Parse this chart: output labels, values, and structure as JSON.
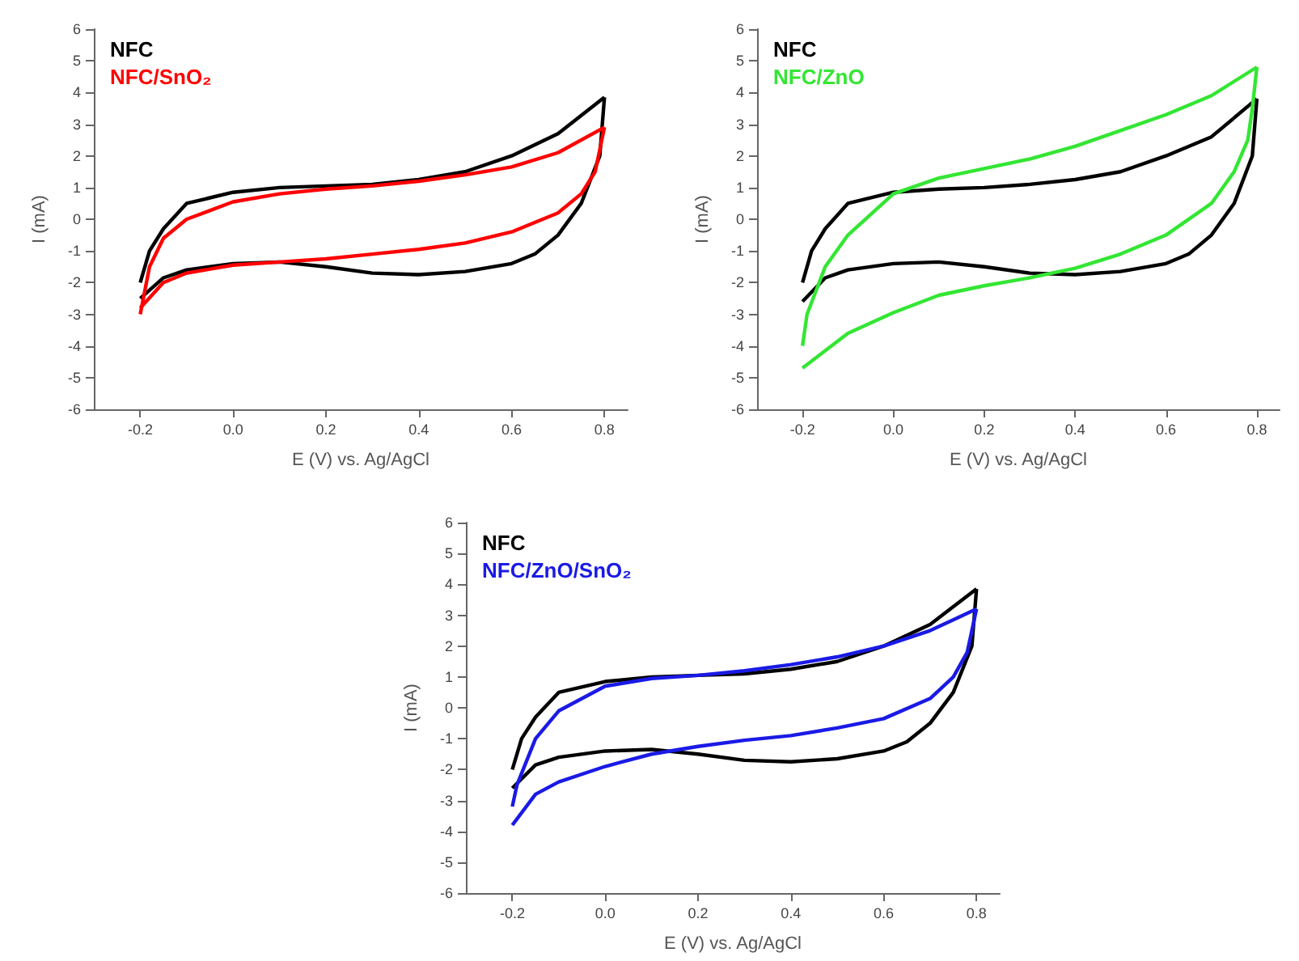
{
  "chart_data": [
    {
      "type": "line",
      "xlabel": "E (V) vs. Ag/AgCl",
      "ylabel": "I (mA)",
      "xlim": [
        -0.3,
        0.85
      ],
      "ylim": [
        -6,
        6
      ],
      "xticks": [
        {
          "value": -0.2,
          "label": "-0.2"
        },
        {
          "value": 0,
          "label": "0.0"
        },
        {
          "value": 0.2,
          "label": "0.2"
        },
        {
          "value": 0.4,
          "label": "0.4"
        },
        {
          "value": 0.6,
          "label": "0.6"
        },
        {
          "value": 0.8,
          "label": "0.8"
        }
      ],
      "yticks": [
        -6,
        -5,
        -4,
        -3,
        -2,
        -1,
        0,
        1,
        2,
        3,
        4,
        5,
        6
      ],
      "marker": "none",
      "line_style": "solid",
      "series": [
        {
          "name": "NFC",
          "color": "#000000",
          "x": [
            -0.2,
            -0.18,
            -0.15,
            -0.1,
            0,
            0.1,
            0.2,
            0.3,
            0.4,
            0.5,
            0.6,
            0.7,
            0.8
          ],
          "values": [
            -2.0,
            -1.0,
            -0.3,
            0.5,
            0.85,
            1.0,
            1.05,
            1.1,
            1.25,
            1.5,
            2.0,
            2.7,
            3.85
          ]
        },
        {
          "color": "#000000",
          "x": [
            0.8,
            0.79,
            0.75,
            0.7,
            0.65,
            0.6,
            0.5,
            0.4,
            0.3,
            0.2,
            0.1,
            0,
            -0.1,
            -0.15,
            -0.2
          ],
          "values": [
            3.85,
            2.0,
            0.5,
            -0.5,
            -1.1,
            -1.4,
            -1.65,
            -1.75,
            -1.7,
            -1.5,
            -1.35,
            -1.4,
            -1.6,
            -1.85,
            -2.5
          ]
        },
        {
          "name": "NFC/SnO₂",
          "color": "#ff0000",
          "x": [
            -0.2,
            -0.18,
            -0.15,
            -0.1,
            0,
            0.1,
            0.2,
            0.3,
            0.4,
            0.5,
            0.6,
            0.7,
            0.8
          ],
          "values": [
            -3.0,
            -1.5,
            -0.6,
            0.0,
            0.55,
            0.8,
            0.95,
            1.05,
            1.2,
            1.4,
            1.65,
            2.1,
            2.9
          ]
        },
        {
          "color": "#ff0000",
          "x": [
            0.8,
            0.79,
            0.78,
            0.75,
            0.7,
            0.6,
            0.5,
            0.4,
            0.3,
            0.2,
            0.1,
            0,
            -0.1,
            -0.15,
            -0.2
          ],
          "values": [
            2.9,
            2.2,
            1.5,
            0.8,
            0.2,
            -0.4,
            -0.75,
            -0.95,
            -1.1,
            -1.25,
            -1.35,
            -1.45,
            -1.7,
            -2.0,
            -2.8
          ]
        }
      ]
    },
    {
      "type": "line",
      "xlabel": "E (V) vs. Ag/AgCl",
      "ylabel": "I (mA)",
      "xlim": [
        -0.3,
        0.85
      ],
      "ylim": [
        -6,
        6
      ],
      "xticks": [
        {
          "value": -0.2,
          "label": "-0.2"
        },
        {
          "value": 0,
          "label": "0.0"
        },
        {
          "value": 0.2,
          "label": "0.2"
        },
        {
          "value": 0.4,
          "label": "0.4"
        },
        {
          "value": 0.6,
          "label": "0.6"
        },
        {
          "value": 0.8,
          "label": "0.8"
        }
      ],
      "yticks": [
        -6,
        -5,
        -4,
        -3,
        -2,
        -1,
        0,
        1,
        2,
        3,
        4,
        5,
        6
      ],
      "marker": "none",
      "line_style": "solid",
      "series": [
        {
          "name": "NFC",
          "color": "#000000",
          "x": [
            -0.2,
            -0.18,
            -0.15,
            -0.1,
            0,
            0.1,
            0.2,
            0.3,
            0.4,
            0.5,
            0.6,
            0.7,
            0.8
          ],
          "values": [
            -2.0,
            -1.0,
            -0.3,
            0.5,
            0.85,
            0.95,
            1.0,
            1.1,
            1.25,
            1.5,
            2.0,
            2.6,
            3.8
          ]
        },
        {
          "color": "#000000",
          "x": [
            0.8,
            0.79,
            0.75,
            0.7,
            0.65,
            0.6,
            0.5,
            0.4,
            0.3,
            0.2,
            0.1,
            0,
            -0.1,
            -0.15,
            -0.2
          ],
          "values": [
            3.8,
            2.0,
            0.5,
            -0.5,
            -1.1,
            -1.4,
            -1.65,
            -1.75,
            -1.7,
            -1.5,
            -1.35,
            -1.4,
            -1.6,
            -1.85,
            -2.6
          ]
        },
        {
          "name": "NFC/ZnO",
          "color": "#33e633",
          "x": [
            -0.2,
            -0.19,
            -0.15,
            -0.1,
            0,
            0.1,
            0.2,
            0.3,
            0.4,
            0.5,
            0.6,
            0.7,
            0.8
          ],
          "values": [
            -4.0,
            -3.0,
            -1.5,
            -0.5,
            0.8,
            1.3,
            1.6,
            1.9,
            2.3,
            2.8,
            3.3,
            3.9,
            4.8
          ]
        },
        {
          "color": "#33e633",
          "x": [
            0.8,
            0.79,
            0.78,
            0.75,
            0.7,
            0.6,
            0.5,
            0.4,
            0.3,
            0.2,
            0.1,
            0,
            -0.1,
            -0.2
          ],
          "values": [
            4.8,
            3.5,
            2.5,
            1.5,
            0.5,
            -0.5,
            -1.1,
            -1.55,
            -1.85,
            -2.1,
            -2.4,
            -2.95,
            -3.6,
            -4.7
          ]
        }
      ]
    },
    {
      "type": "line",
      "xlabel": "E (V) vs. Ag/AgCl",
      "ylabel": "I (mA)",
      "xlim": [
        -0.3,
        0.85
      ],
      "ylim": [
        -6,
        6
      ],
      "xticks": [
        {
          "value": -0.2,
          "label": "-0.2"
        },
        {
          "value": 0,
          "label": "0.0"
        },
        {
          "value": 0.2,
          "label": "0.2"
        },
        {
          "value": 0.4,
          "label": "0.4"
        },
        {
          "value": 0.6,
          "label": "0.6"
        },
        {
          "value": 0.8,
          "label": "0.8"
        }
      ],
      "yticks": [
        -6,
        -5,
        -4,
        -3,
        -2,
        -1,
        0,
        1,
        2,
        3,
        4,
        5,
        6
      ],
      "marker": "none",
      "line_style": "solid",
      "series": [
        {
          "name": "NFC",
          "color": "#000000",
          "x": [
            -0.2,
            -0.18,
            -0.15,
            -0.1,
            0,
            0.1,
            0.2,
            0.3,
            0.4,
            0.5,
            0.6,
            0.7,
            0.8
          ],
          "values": [
            -2.0,
            -1.0,
            -0.3,
            0.5,
            0.85,
            1.0,
            1.05,
            1.1,
            1.25,
            1.5,
            2.0,
            2.7,
            3.85
          ]
        },
        {
          "color": "#000000",
          "x": [
            0.8,
            0.79,
            0.75,
            0.7,
            0.65,
            0.6,
            0.5,
            0.4,
            0.3,
            0.2,
            0.1,
            0,
            -0.1,
            -0.15,
            -0.2
          ],
          "values": [
            3.85,
            2.0,
            0.5,
            -0.5,
            -1.1,
            -1.4,
            -1.65,
            -1.75,
            -1.7,
            -1.5,
            -1.35,
            -1.4,
            -1.6,
            -1.85,
            -2.6
          ]
        },
        {
          "name": "NFC/ZnO/SnO₂",
          "color": "#1a1ae6",
          "x": [
            -0.2,
            -0.19,
            -0.15,
            -0.1,
            0,
            0.1,
            0.2,
            0.3,
            0.4,
            0.5,
            0.6,
            0.7,
            0.8
          ],
          "values": [
            -3.2,
            -2.5,
            -1.0,
            -0.1,
            0.7,
            0.95,
            1.05,
            1.2,
            1.4,
            1.65,
            2.0,
            2.5,
            3.2
          ]
        },
        {
          "color": "#1a1ae6",
          "x": [
            0.8,
            0.79,
            0.78,
            0.75,
            0.7,
            0.6,
            0.5,
            0.4,
            0.3,
            0.2,
            0.1,
            0,
            -0.1,
            -0.15,
            -0.2
          ],
          "values": [
            3.2,
            2.5,
            1.8,
            1.0,
            0.3,
            -0.35,
            -0.65,
            -0.9,
            -1.05,
            -1.25,
            -1.5,
            -1.9,
            -2.4,
            -2.8,
            -3.8
          ]
        }
      ]
    }
  ]
}
